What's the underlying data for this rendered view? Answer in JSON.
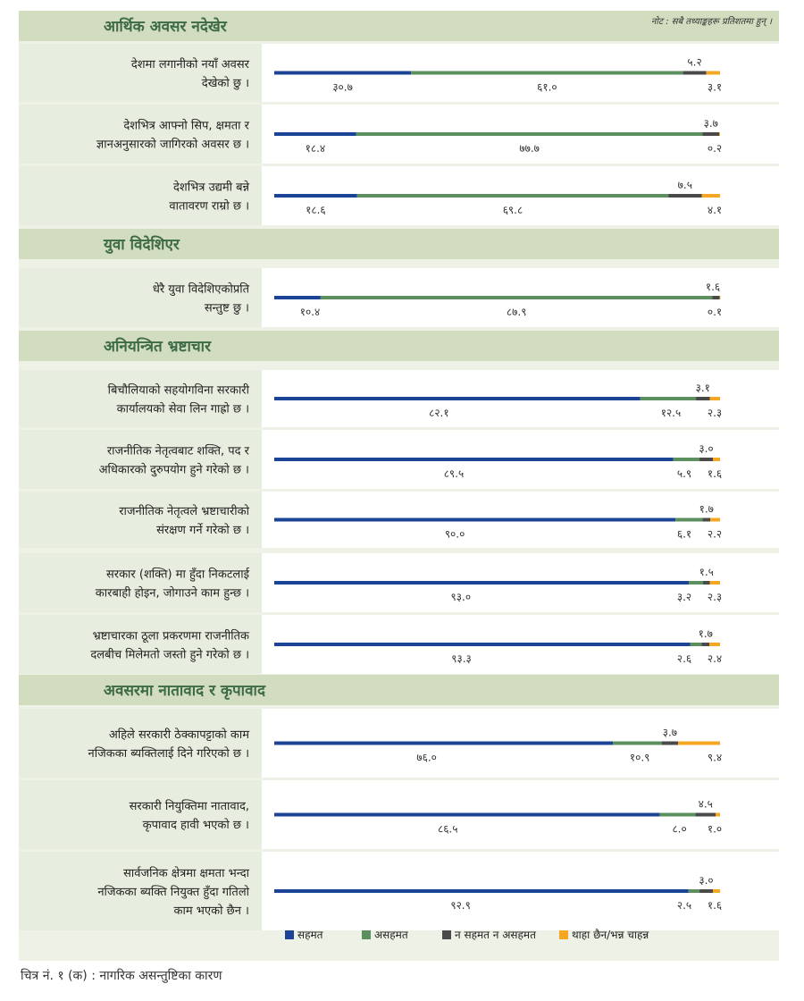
{
  "note": "नोट : सबै तथ्याङ्कहरू प्रतिशतमा हुन् ।",
  "caption": "चित्र नं. १ (क) : नागरिक असन्तुष्टिका कारण",
  "colors": {
    "agree": "#1c4496",
    "disagree": "#5b8f5e",
    "neutral": "#4a4a4a",
    "dont_know": "#f5a623",
    "section_bg": "#d2dcbf",
    "label_bg": "#e8eedf",
    "plot_bg": "#ffffff",
    "section_text": "#3d6b45"
  },
  "chart_data": {
    "type": "bar",
    "orientation": "horizontal",
    "stacked": true,
    "units": "percent",
    "xlim": [
      0,
      100
    ],
    "legend_position": "bottom",
    "series": [
      {
        "key": "agree",
        "name": "सहमत"
      },
      {
        "key": "disagree",
        "name": "असहमत"
      },
      {
        "key": "neutral",
        "name": "न सहमत न असहमत"
      },
      {
        "key": "dont_know",
        "name": "थाहा छैन/भन्न चाहन्न"
      }
    ],
    "groups": [
      {
        "title": "आर्थिक अवसर नदेखेर",
        "rows": [
          {
            "label": [
              "देशमा लगानीको नयाँ अवसर",
              "देखेको छु ।"
            ],
            "values": [
              30.7,
              61.0,
              5.2,
              3.1
            ],
            "labels": [
              "३०.७",
              "६१.०",
              "५.२",
              "३.१"
            ]
          },
          {
            "label": [
              "देशभित्र आफ्नो सिप, क्षमता र",
              "ज्ञानअनुसारको जागिरको अवसर छ ।"
            ],
            "values": [
              18.4,
              77.7,
              3.7,
              0.2
            ],
            "labels": [
              "१८.४",
              "७७.७",
              "३.७",
              "०.२"
            ]
          },
          {
            "label": [
              "देशभित्र उद्यमी बन्ने",
              "वातावरण राम्रो छ ।"
            ],
            "values": [
              18.6,
              69.8,
              7.5,
              4.1
            ],
            "labels": [
              "१८.६",
              "६९.८",
              "७.५",
              "४.१"
            ]
          }
        ]
      },
      {
        "title": "युवा विदेशिएर",
        "rows": [
          {
            "label": [
              "धेरै युवा विदेशिएकोप्रति",
              "सन्तुष्ट छु ।"
            ],
            "values": [
              10.4,
              87.9,
              1.6,
              0.1
            ],
            "labels": [
              "१०.४",
              "८७.९",
              "१.६",
              "०.१"
            ]
          }
        ]
      },
      {
        "title": "अनियन्त्रित भ्रष्टाचार",
        "rows": [
          {
            "label": [
              "बिचौलियाको सहयोगविना सरकारी",
              "कार्यालयको सेवा लिन गाह्रो छ ।"
            ],
            "values": [
              82.1,
              12.5,
              3.1,
              2.3
            ],
            "labels": [
              "८२.१",
              "१२.५",
              "३.१",
              "२.३"
            ]
          },
          {
            "label": [
              "राजनीतिक नेतृत्वबाट शक्ति, पद र",
              "अधिकारको दुरुपयोग हुने गरेको छ ।"
            ],
            "values": [
              89.5,
              5.9,
              3.0,
              1.6
            ],
            "labels": [
              "८९.५",
              "५.९",
              "३.०",
              "१.६"
            ]
          },
          {
            "label": [
              "राजनीतिक नेतृत्वले भ्रष्टाचारीको",
              "संरक्षण गर्ने गरेको छ ।"
            ],
            "values": [
              90.0,
              6.1,
              1.7,
              2.2
            ],
            "labels": [
              "९०.०",
              "६.१",
              "१.७",
              "२.२"
            ]
          },
          {
            "label": [
              "सरकार (शक्ति) मा हुँदा निकटलाई",
              "कारबाही होइन, जोगाउने काम हुन्छ ।"
            ],
            "values": [
              93.0,
              3.2,
              1.5,
              2.3
            ],
            "labels": [
              "९३.०",
              "३.२",
              "१.५",
              "२.३"
            ]
          },
          {
            "label": [
              "भ्रष्टाचारका ठूला प्रकरणमा राजनीतिक",
              "दलबीच मिलेमतो जस्तो हुने गरेको छ ।"
            ],
            "values": [
              93.3,
              2.6,
              1.7,
              2.4
            ],
            "labels": [
              "९३.३",
              "२.६",
              "१.७",
              "२.४"
            ]
          }
        ]
      },
      {
        "title": "अवसरमा नातावाद र कृपावाद",
        "rows": [
          {
            "label": [
              "अहिले सरकारी ठेक्कापट्टाको काम",
              "नजिकका ब्यक्तिलाई दिने गरिएको छ ।"
            ],
            "values": [
              76.0,
              10.9,
              3.7,
              9.4
            ],
            "labels": [
              "७६.०",
              "१०.९",
              "३.७",
              "९.४"
            ]
          },
          {
            "label": [
              "सरकारी नियुक्तिमा नातावाद,",
              "कृपावाद हावी भएको छ ।"
            ],
            "values": [
              86.5,
              8.0,
              4.5,
              1.0
            ],
            "labels": [
              "८६.५",
              "८.०",
              "४.५",
              "१.०"
            ]
          },
          {
            "label": [
              "सार्वजनिक क्षेत्रमा क्षमता भन्दा",
              "नजिकका ब्यक्ति नियुक्त हुँदा गतिलो",
              "काम भएको छैन ।"
            ],
            "values": [
              92.9,
              2.5,
              3.0,
              1.6
            ],
            "labels": [
              "९२.९",
              "२.५",
              "३.०",
              "१.६"
            ]
          }
        ]
      }
    ]
  }
}
